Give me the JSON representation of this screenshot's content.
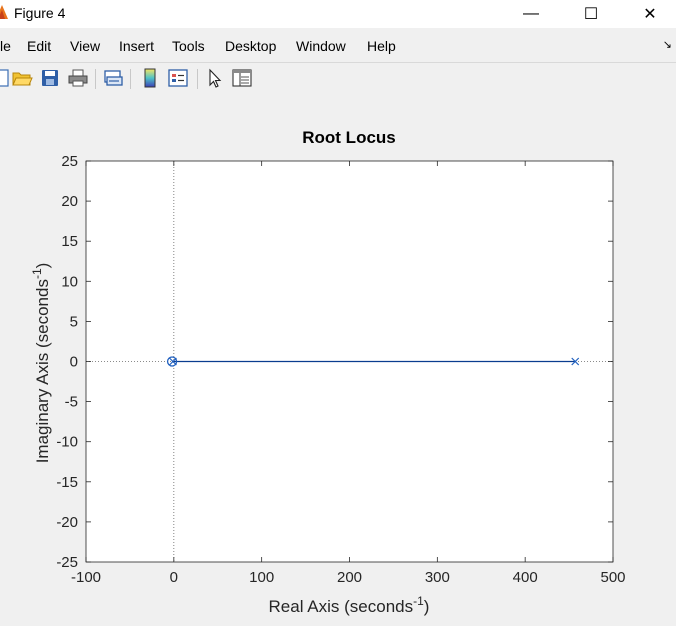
{
  "window": {
    "title": "Figure 4",
    "minimize_glyph": "—",
    "maximize_glyph": "☐",
    "close_glyph": "✕"
  },
  "menu": {
    "items": [
      "le",
      "Edit",
      "View",
      "Insert",
      "Tools",
      "Desktop",
      "Window",
      "Help"
    ],
    "dock_glyph": "↘"
  },
  "toolbar": {
    "tools": [
      "new-figure-icon",
      "open-file-icon",
      "save-icon",
      "print-icon",
      "link-plot-icon",
      "insert-colorbar-icon",
      "insert-legend-icon",
      "edit-plot-pointer-icon",
      "property-inspector-icon"
    ]
  },
  "colors": {
    "locus": "#0a3d8f",
    "marker": "#1f5fbf",
    "axes_text": "#262626",
    "grid": "#666666"
  },
  "chart_data": {
    "type": "line",
    "title": "Root Locus",
    "xlabel": "Real Axis (seconds",
    "ylabel": "Imaginary Axis (seconds",
    "label_exponent": "-1",
    "label_close": ")",
    "xlim": [
      -100,
      500
    ],
    "ylim": [
      -25,
      25
    ],
    "xticks": [
      "-100",
      "0",
      "100",
      "200",
      "300",
      "400",
      "500"
    ],
    "yticks": [
      "25",
      "20",
      "15",
      "10",
      "5",
      "0",
      "-5",
      "-10",
      "-15",
      "-20",
      "-25"
    ],
    "xtick_values": [
      -100,
      0,
      100,
      200,
      300,
      400,
      500
    ],
    "ytick_values": [
      25,
      20,
      15,
      10,
      5,
      0,
      -5,
      -10,
      -15,
      -20,
      -25
    ],
    "series": [
      {
        "x": [
          457,
          -1
        ],
        "y": [
          0,
          0
        ]
      }
    ],
    "poles": [
      {
        "x": 457,
        "y": 0
      },
      {
        "x": -1,
        "y": 0
      }
    ],
    "zeros": [
      {
        "x": -2,
        "y": 0
      }
    ],
    "grid": false,
    "zero_lines": true
  }
}
